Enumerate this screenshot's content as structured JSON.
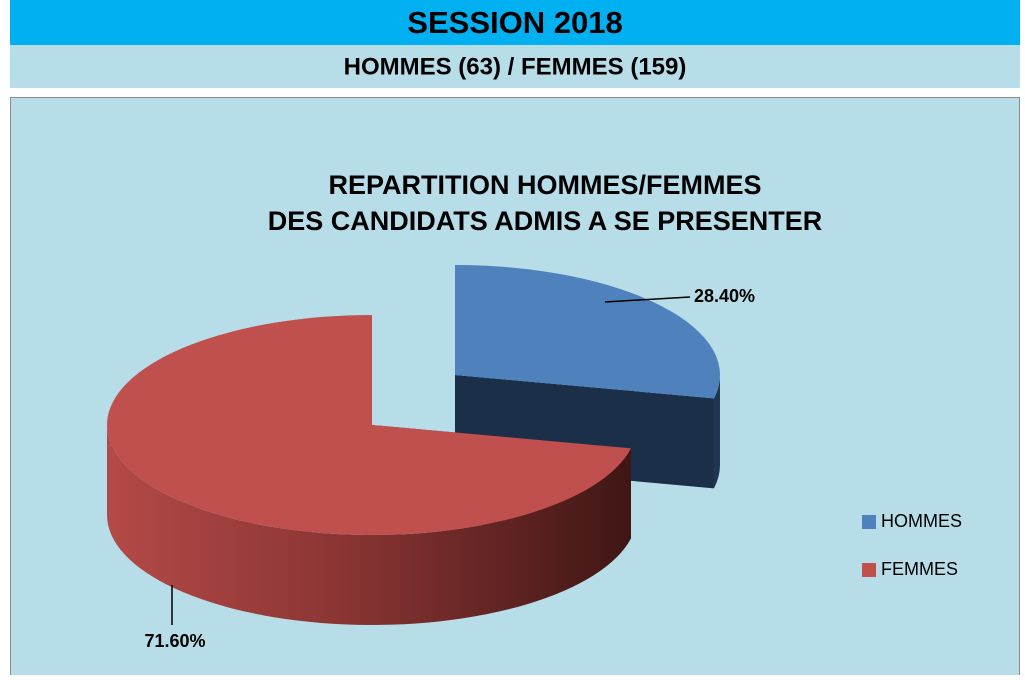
{
  "header": {
    "title": "SESSION 2018",
    "subtitle": "HOMMES (63)  / FEMMES (159)"
  },
  "chart_data": {
    "type": "pie",
    "title": [
      "REPARTITION HOMMES/FEMMES",
      "DES CANDIDATS ADMIS A SE PRESENTER"
    ],
    "categories": [
      "HOMMES",
      "FEMMES"
    ],
    "values": [
      28.4,
      71.6
    ],
    "value_labels": [
      "28.40%",
      "71.60%"
    ],
    "colors": [
      "#4f81bd",
      "#c0504d"
    ],
    "legend": "right"
  }
}
